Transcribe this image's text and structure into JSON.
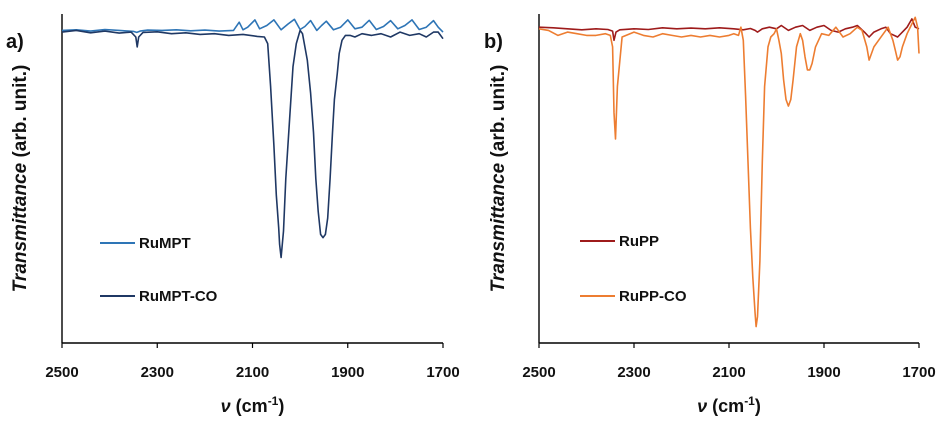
{
  "chart_data": [
    {
      "panel_label": "a)",
      "type": "line",
      "xlabel_symbol": "ν",
      "xlabel_unit_base": "(cm",
      "xlabel_unit_sup": "-1",
      "xlabel_unit_close": ")",
      "ylabel_italic": "Transmittance",
      "ylabel_rest": " (arb. unit.)",
      "xlim": [
        2500,
        1700
      ],
      "ylim": [
        0,
        1
      ],
      "x_ticks": [
        "2500",
        "2300",
        "2100",
        "1900",
        "1700"
      ],
      "grid": false,
      "legend_position": "lower-left",
      "series": [
        {
          "name": "RuMPT",
          "color": "#2e75b6",
          "x": [
            2500,
            2470,
            2440,
            2410,
            2380,
            2350,
            2343,
            2336,
            2320,
            2290,
            2260,
            2230,
            2200,
            2170,
            2140,
            2128,
            2120,
            2110,
            2095,
            2085,
            2070,
            2055,
            2040,
            2025,
            2012,
            2000,
            1990,
            1978,
            1965,
            1955,
            1945,
            1930,
            1915,
            1900,
            1885,
            1870,
            1855,
            1840,
            1825,
            1810,
            1795,
            1780,
            1765,
            1750,
            1735,
            1720,
            1710,
            1700
          ],
          "y": [
            0.95,
            0.952,
            0.948,
            0.953,
            0.95,
            0.947,
            0.944,
            0.948,
            0.951,
            0.95,
            0.952,
            0.949,
            0.951,
            0.948,
            0.95,
            0.975,
            0.952,
            0.96,
            0.982,
            0.955,
            0.965,
            0.982,
            0.952,
            0.97,
            0.984,
            0.953,
            0.962,
            0.98,
            0.95,
            0.965,
            0.978,
            0.952,
            0.96,
            0.982,
            0.955,
            0.96,
            0.981,
            0.953,
            0.962,
            0.98,
            0.955,
            0.965,
            0.982,
            0.953,
            0.96,
            0.98,
            0.96,
            0.945
          ]
        },
        {
          "name": "RuMPT-CO",
          "color": "#1f3864",
          "x": [
            2500,
            2470,
            2440,
            2410,
            2380,
            2355,
            2345,
            2342,
            2339,
            2330,
            2300,
            2270,
            2240,
            2210,
            2180,
            2150,
            2120,
            2090,
            2075,
            2068,
            2062,
            2055,
            2050,
            2045,
            2043,
            2040,
            2035,
            2030,
            2022,
            2015,
            2008,
            2000,
            1995,
            1990,
            1985,
            1978,
            1972,
            1967,
            1962,
            1957,
            1952,
            1947,
            1942,
            1937,
            1932,
            1928,
            1922,
            1918,
            1912,
            1905,
            1895,
            1885,
            1870,
            1850,
            1830,
            1810,
            1790,
            1770,
            1750,
            1735,
            1720,
            1710,
            1700
          ],
          "y": [
            0.945,
            0.95,
            0.943,
            0.948,
            0.942,
            0.945,
            0.93,
            0.9,
            0.93,
            0.944,
            0.946,
            0.94,
            0.943,
            0.938,
            0.94,
            0.935,
            0.938,
            0.932,
            0.93,
            0.91,
            0.78,
            0.6,
            0.45,
            0.35,
            0.3,
            0.26,
            0.34,
            0.5,
            0.68,
            0.84,
            0.91,
            0.95,
            0.94,
            0.9,
            0.86,
            0.76,
            0.64,
            0.5,
            0.4,
            0.33,
            0.32,
            0.33,
            0.38,
            0.5,
            0.64,
            0.74,
            0.82,
            0.88,
            0.92,
            0.935,
            0.935,
            0.93,
            0.94,
            0.935,
            0.94,
            0.93,
            0.945,
            0.935,
            0.94,
            0.93,
            0.945,
            0.945,
            0.925
          ]
        }
      ]
    },
    {
      "panel_label": "b)",
      "type": "line",
      "xlabel_symbol": "ν",
      "xlabel_unit_base": "(cm",
      "xlabel_unit_sup": "-1",
      "xlabel_unit_close": ")",
      "ylabel_italic": "Transmittance",
      "ylabel_rest": " (arb. unit.)",
      "xlim": [
        2500,
        1700
      ],
      "ylim": [
        0,
        1
      ],
      "x_ticks": [
        "2500",
        "2300",
        "2100",
        "1900",
        "1700"
      ],
      "grid": false,
      "legend_position": "lower-left",
      "series": [
        {
          "name": "RuPP",
          "color": "#9e1b1b",
          "x": [
            2500,
            2470,
            2440,
            2410,
            2380,
            2355,
            2345,
            2342,
            2338,
            2330,
            2300,
            2270,
            2240,
            2210,
            2180,
            2150,
            2120,
            2090,
            2070,
            2055,
            2045,
            2040,
            2030,
            2015,
            2000,
            1990,
            1975,
            1960,
            1945,
            1930,
            1915,
            1900,
            1885,
            1870,
            1855,
            1840,
            1830,
            1815,
            1805,
            1795,
            1780,
            1770,
            1760,
            1745,
            1735,
            1725,
            1715,
            1708,
            1700
          ],
          "y": [
            0.96,
            0.958,
            0.955,
            0.952,
            0.955,
            0.953,
            0.948,
            0.92,
            0.945,
            0.952,
            0.955,
            0.953,
            0.958,
            0.955,
            0.957,
            0.955,
            0.958,
            0.955,
            0.952,
            0.956,
            0.95,
            0.945,
            0.955,
            0.96,
            0.955,
            0.965,
            0.95,
            0.96,
            0.965,
            0.95,
            0.96,
            0.965,
            0.95,
            0.945,
            0.955,
            0.96,
            0.965,
            0.945,
            0.93,
            0.945,
            0.955,
            0.96,
            0.94,
            0.93,
            0.945,
            0.96,
            0.985,
            0.96,
            0.955
          ]
        },
        {
          "name": "RuPP-CO",
          "color": "#ed7d31",
          "x": [
            2500,
            2480,
            2460,
            2440,
            2420,
            2400,
            2380,
            2360,
            2350,
            2345,
            2342,
            2339,
            2335,
            2325,
            2300,
            2280,
            2260,
            2240,
            2220,
            2200,
            2180,
            2160,
            2140,
            2120,
            2100,
            2090,
            2080,
            2075,
            2070,
            2065,
            2060,
            2055,
            2050,
            2045,
            2043,
            2040,
            2035,
            2030,
            2025,
            2018,
            2012,
            2005,
            2000,
            1995,
            1990,
            1985,
            1980,
            1975,
            1970,
            1965,
            1958,
            1950,
            1945,
            1940,
            1935,
            1930,
            1925,
            1918,
            1905,
            1890,
            1875,
            1860,
            1845,
            1830,
            1820,
            1810,
            1805,
            1800,
            1795,
            1785,
            1775,
            1765,
            1755,
            1750,
            1745,
            1740,
            1735,
            1725,
            1715,
            1708,
            1703,
            1700
          ],
          "y": [
            0.955,
            0.95,
            0.935,
            0.945,
            0.94,
            0.935,
            0.935,
            0.94,
            0.935,
            0.9,
            0.7,
            0.62,
            0.78,
            0.93,
            0.945,
            0.935,
            0.93,
            0.94,
            0.935,
            0.93,
            0.935,
            0.93,
            0.935,
            0.93,
            0.935,
            0.94,
            0.935,
            0.96,
            0.92,
            0.75,
            0.55,
            0.35,
            0.2,
            0.09,
            0.05,
            0.08,
            0.25,
            0.55,
            0.78,
            0.9,
            0.93,
            0.94,
            0.955,
            0.92,
            0.88,
            0.8,
            0.74,
            0.72,
            0.74,
            0.8,
            0.9,
            0.94,
            0.92,
            0.87,
            0.83,
            0.83,
            0.85,
            0.9,
            0.94,
            0.935,
            0.96,
            0.93,
            0.94,
            0.96,
            0.95,
            0.9,
            0.86,
            0.88,
            0.9,
            0.92,
            0.94,
            0.96,
            0.92,
            0.89,
            0.86,
            0.87,
            0.9,
            0.94,
            0.97,
            0.99,
            0.96,
            0.88
          ]
        }
      ]
    }
  ]
}
